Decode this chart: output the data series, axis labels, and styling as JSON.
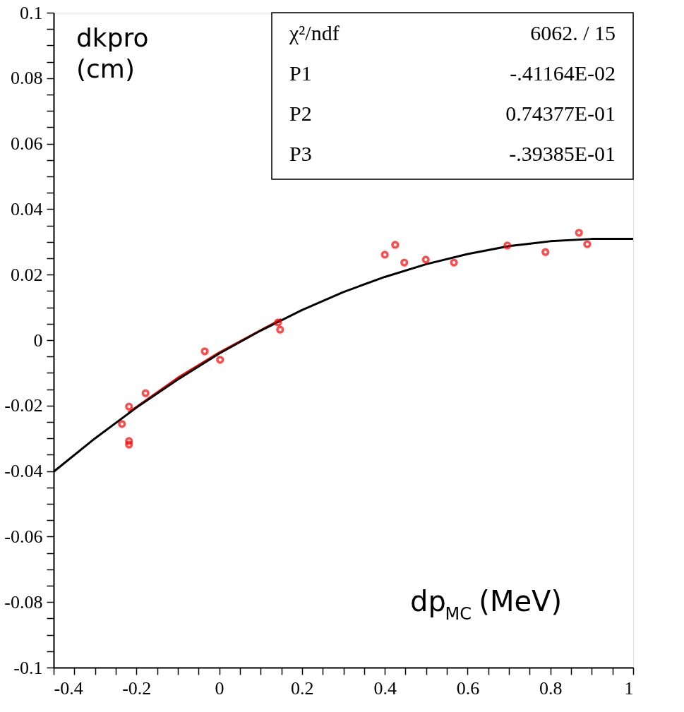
{
  "chart_data": {
    "type": "line",
    "xlabel": "dp$_{MC}$ (MeV)",
    "ylabel": "dkpro\n(cm)",
    "annotations": [
      "χ²/ndf",
      "6062.   /   15",
      "P1",
      "-.41164E-02",
      "P2",
      "0.74377E-01",
      "P3",
      "-.39385E-01"
    ],
    "xlim": [
      -0.4,
      1
    ],
    "ylim": [
      -0.1,
      0.1
    ],
    "xticks": [
      -0.4,
      {
        "value": -0.35,
        "label": null
      },
      {
        "value": -0.3,
        "label": null
      },
      {
        "value": -0.25,
        "label": null
      },
      -0.2,
      {
        "value": -0.15,
        "label": null
      },
      {
        "value": -0.1,
        "label": null
      },
      {
        "value": -0.05,
        "label": null
      },
      0,
      {
        "value": 0.05,
        "label": null
      },
      {
        "value": 0.1,
        "label": null
      },
      {
        "value": 0.15,
        "label": null
      },
      0.2,
      {
        "value": 0.25,
        "label": null
      },
      {
        "value": 0.3,
        "label": null
      },
      {
        "value": 0.35,
        "label": null
      },
      0.4,
      {
        "value": 0.45,
        "label": null
      },
      {
        "value": 0.5,
        "label": null
      },
      {
        "value": 0.55,
        "label": null
      },
      0.6,
      {
        "value": 0.65,
        "label": null
      },
      {
        "value": 0.7,
        "label": null
      },
      {
        "value": 0.75,
        "label": null
      },
      0.8,
      {
        "value": 0.85,
        "label": null
      },
      {
        "value": 0.9,
        "label": null
      },
      {
        "value": 0.95,
        "label": null
      },
      1
    ],
    "yticks": [
      -0.1,
      {
        "value": -0.095,
        "label": null
      },
      {
        "value": -0.09,
        "label": null
      },
      {
        "value": -0.085,
        "label": null
      },
      -0.08,
      {
        "value": -0.075,
        "label": null
      },
      {
        "value": -0.07,
        "label": null
      },
      {
        "value": -0.065,
        "label": null
      },
      -0.06,
      {
        "value": -0.055,
        "label": null
      },
      {
        "value": -0.05,
        "label": null
      },
      {
        "value": -0.045,
        "label": null
      },
      -0.04,
      {
        "value": -0.035,
        "label": null
      },
      {
        "value": -0.03,
        "label": null
      },
      {
        "value": -0.025,
        "label": null
      },
      -0.02,
      {
        "value": -0.015,
        "label": null
      },
      {
        "value": -0.01,
        "label": null
      },
      {
        "value": -0.005,
        "label": null
      },
      0,
      {
        "value": 0.005,
        "label": null
      },
      {
        "value": 0.01,
        "label": null
      },
      {
        "value": 0.015,
        "label": null
      },
      0.02,
      {
        "value": 0.025,
        "label": null
      },
      {
        "value": 0.03,
        "label": null
      },
      {
        "value": 0.035,
        "label": null
      },
      0.04,
      {
        "value": 0.045,
        "label": null
      },
      {
        "value": 0.05,
        "label": null
      },
      {
        "value": 0.055,
        "label": null
      },
      0.06,
      {
        "value": 0.065,
        "label": null
      },
      {
        "value": 0.07,
        "label": null
      },
      {
        "value": 0.075,
        "label": null
      },
      0.08,
      {
        "value": 0.085,
        "label": null
      },
      {
        "value": 0.09,
        "label": null
      },
      {
        "value": 0.095,
        "label": null
      },
      0.1
    ],
    "series": [
      {
        "color": "#ff0000",
        "x": [
          -0.22,
          -0.1,
          0,
          0.15
        ],
        "values": [
          -0.0222,
          -0.0115,
          -0.0038,
          0.0064
        ]
      },
      {
        "color": "#000000",
        "x": [
          -0.4,
          -0.3,
          -0.2,
          -0.1,
          0,
          0.1,
          0.2,
          0.3,
          0.4,
          0.5,
          0.6,
          0.7,
          0.8,
          0.9,
          1.0
        ],
        "values": [
          -0.0402,
          -0.03,
          -0.0206,
          -0.012,
          -0.0041,
          0.0029,
          0.0092,
          0.0147,
          0.0193,
          0.0232,
          0.0263,
          0.0287,
          0.0302,
          0.0309,
          0.0309
        ]
      },
      {
        "type": "scatter",
        "marker": "circle",
        "color": "#ff0000",
        "x": [
          -0.235,
          -0.218,
          -0.218,
          -0.218,
          -0.178,
          -0.035,
          0.002,
          0.142,
          0.147,
          0.4,
          0.425,
          0.447,
          0.499,
          0.567,
          0.696,
          0.788,
          0.869,
          0.889
        ],
        "values": [
          -0.0256,
          -0.0203,
          -0.0308,
          -0.0319,
          -0.0162,
          -0.0034,
          -0.006,
          0.0054,
          0.0032,
          0.0261,
          0.0291,
          0.0237,
          0.0246,
          0.0237,
          0.0289,
          0.0269,
          0.0328,
          0.0293
        ]
      }
    ]
  }
}
